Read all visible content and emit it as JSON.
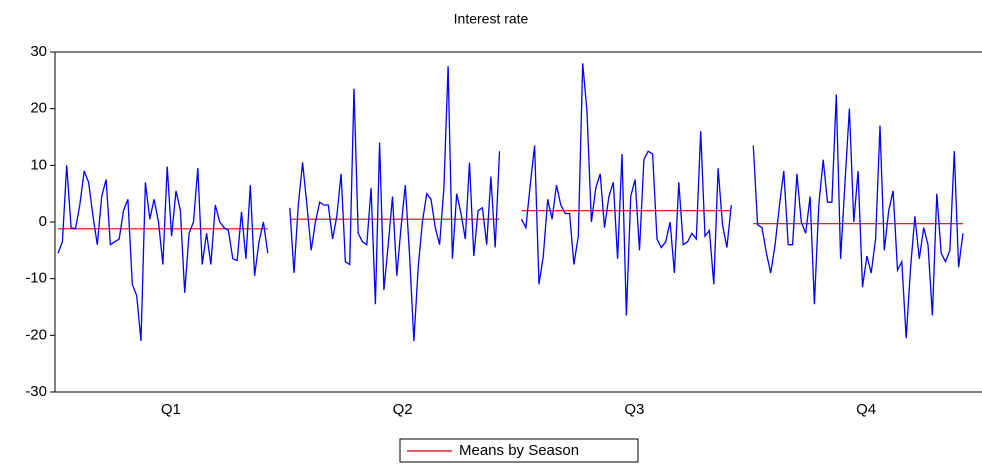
{
  "chart_data": {
    "type": "seasonal-line",
    "title": "Interest rate",
    "line_color": "#0000ff",
    "mean_series": {
      "name": "Means by Season",
      "color": "#e00000"
    },
    "ylim": [
      -30,
      30
    ],
    "yticks": [
      -30,
      -20,
      -10,
      0,
      10,
      20,
      30
    ],
    "seasons": [
      {
        "label": "Q1",
        "mean": -1.2,
        "values": [
          -5.5,
          -3.5,
          10,
          -1,
          -1.2,
          3,
          9,
          7,
          1,
          -4,
          4.5,
          7.5,
          -4,
          -3.5,
          -3,
          2,
          4,
          -11,
          -13,
          -21,
          7,
          0.5,
          4,
          0,
          -7.5,
          9.8,
          -2.5,
          5.5,
          2,
          -12.5,
          -2,
          0,
          9.5,
          -7.5,
          -2,
          -7.5,
          3,
          0,
          -1,
          -1.5,
          -6.5,
          -6.8,
          1.8,
          -6.5,
          6.5,
          -9.5,
          -3.5,
          0,
          -5.5
        ]
      },
      {
        "label": "Q2",
        "mean": 0.5,
        "values": [
          2.5,
          -9,
          3,
          10.5,
          3,
          -5,
          0,
          3.5,
          3,
          3,
          -3,
          1,
          8.5,
          -7,
          -7.5,
          23.5,
          -2,
          -3.5,
          -4,
          6,
          -14.5,
          14,
          -12,
          -4,
          4.5,
          -9.5,
          -1,
          6.5,
          -6,
          -21,
          -8,
          0,
          5,
          4,
          -1,
          -4,
          6,
          27.5,
          -6.5,
          5,
          1.5,
          -3,
          10.5,
          -6,
          2,
          2.5,
          -4,
          8,
          -4.5,
          12.5
        ]
      },
      {
        "label": "Q3",
        "mean": 2.0,
        "values": [
          0.5,
          -1,
          6.5,
          13.5,
          -11,
          -6,
          4,
          0.5,
          6.5,
          3,
          1.5,
          1.5,
          -7.5,
          -2.5,
          28,
          19.5,
          0,
          6,
          8.5,
          -1,
          4.5,
          7,
          -6.5,
          12,
          -16.5,
          4.5,
          7.5,
          -5,
          11,
          12.5,
          12,
          -3,
          -4.5,
          -3.5,
          0,
          -9,
          7,
          -4,
          -3.5,
          -2,
          -3,
          16,
          -2.5,
          -1.5,
          -11,
          9.5,
          -0.5,
          -4.5,
          3
        ]
      },
      {
        "label": "Q4",
        "mean": -0.3,
        "values": [
          13.5,
          -0.5,
          -1,
          -5.5,
          -9,
          -4,
          3,
          9,
          -4,
          -4,
          8.5,
          0,
          -2,
          4.5,
          -14.5,
          3,
          11,
          3.5,
          3.5,
          22.5,
          -6.5,
          7,
          20,
          0,
          9,
          -11.5,
          -6,
          -9,
          -3,
          17,
          -5,
          2,
          5.5,
          -8.5,
          -7,
          -20.5,
          -8,
          1,
          -6.5,
          -1,
          -4,
          -16.5,
          5,
          -5.5,
          -7,
          -5,
          12.5,
          -8,
          -2
        ]
      }
    ]
  }
}
